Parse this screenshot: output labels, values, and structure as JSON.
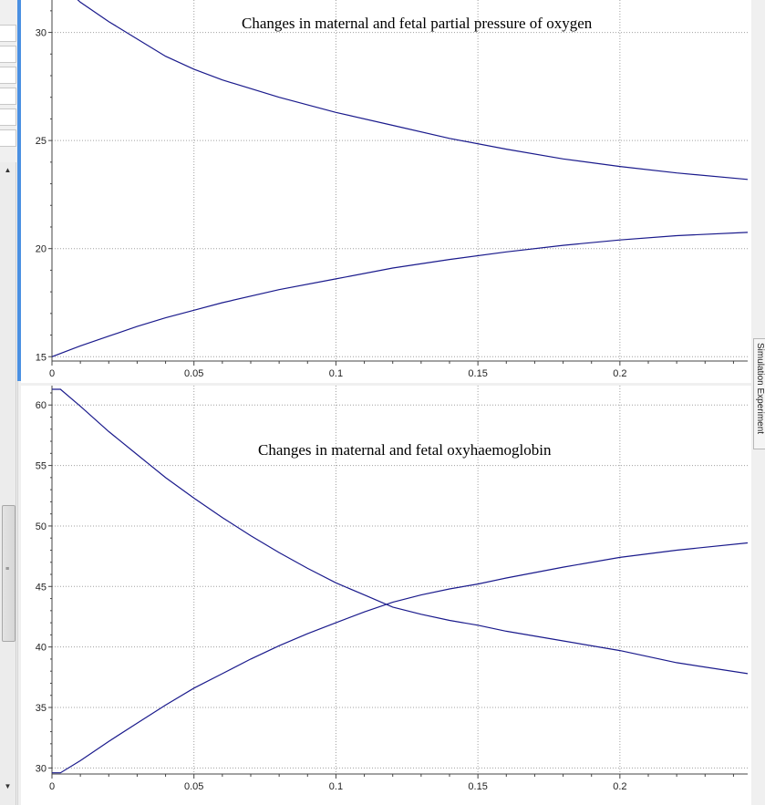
{
  "dock_tab_label": "Simulation Experiment",
  "colors": {
    "series": "#1a1a8c",
    "grid": "#a0a0a0",
    "selection": "#4a90e2"
  },
  "chart_data": [
    {
      "type": "line",
      "title": "Changes in maternal and fetal partial pressure of oxygen",
      "xlim": [
        0,
        0.245
      ],
      "ylim": [
        14.8,
        31.5
      ],
      "x_ticks": [
        0,
        0.05,
        0.1,
        0.15,
        0.2
      ],
      "x_tick_labels": [
        "0",
        "0.05",
        "0.1",
        "0.15",
        "0.2"
      ],
      "y_ticks": [
        15,
        20,
        25,
        30
      ],
      "y_tick_labels": [
        "15",
        "20",
        "25",
        "30"
      ],
      "grid": true,
      "series": [
        {
          "x": [
            0,
            0.01,
            0.02,
            0.03,
            0.04,
            0.05,
            0.06,
            0.08,
            0.1,
            0.12,
            0.14,
            0.16,
            0.18,
            0.2,
            0.22,
            0.245
          ],
          "y": [
            32.6,
            31.4,
            30.5,
            29.7,
            28.9,
            28.3,
            27.8,
            27.0,
            26.3,
            25.7,
            25.1,
            24.6,
            24.15,
            23.8,
            23.5,
            23.2
          ]
        },
        {
          "x": [
            0,
            0.01,
            0.02,
            0.03,
            0.04,
            0.05,
            0.06,
            0.08,
            0.1,
            0.12,
            0.14,
            0.16,
            0.18,
            0.2,
            0.22,
            0.245
          ],
          "y": [
            15.0,
            15.5,
            15.95,
            16.4,
            16.8,
            17.15,
            17.5,
            18.1,
            18.6,
            19.1,
            19.5,
            19.85,
            20.15,
            20.4,
            20.6,
            20.75
          ]
        }
      ]
    },
    {
      "type": "line",
      "title": "Changes in maternal and fetal oxyhaemoglobin",
      "xlim": [
        0,
        0.245
      ],
      "ylim": [
        29.5,
        61.6
      ],
      "x_ticks": [
        0,
        0.05,
        0.1,
        0.15,
        0.2
      ],
      "x_tick_labels": [
        "0",
        "0.05",
        "0.1",
        "0.15",
        "0.2"
      ],
      "y_ticks": [
        30,
        35,
        40,
        45,
        50,
        55,
        60
      ],
      "y_tick_labels": [
        "30",
        "35",
        "40",
        "45",
        "50",
        "55",
        "60"
      ],
      "grid": true,
      "series": [
        {
          "x": [
            0,
            0.003,
            0.01,
            0.02,
            0.03,
            0.04,
            0.05,
            0.06,
            0.07,
            0.08,
            0.09,
            0.1,
            0.11,
            0.12,
            0.13,
            0.14,
            0.15,
            0.16,
            0.18,
            0.2,
            0.22,
            0.245
          ],
          "y": [
            61.3,
            61.3,
            59.9,
            57.8,
            55.9,
            54.0,
            52.3,
            50.7,
            49.2,
            47.8,
            46.5,
            45.3,
            44.3,
            43.3,
            42.7,
            42.2,
            41.8,
            41.3,
            40.5,
            39.7,
            38.7,
            37.8
          ]
        },
        {
          "x": [
            0,
            0.003,
            0.01,
            0.02,
            0.03,
            0.04,
            0.05,
            0.06,
            0.07,
            0.08,
            0.09,
            0.1,
            0.11,
            0.12,
            0.13,
            0.14,
            0.15,
            0.16,
            0.18,
            0.2,
            0.22,
            0.245
          ],
          "y": [
            29.6,
            29.6,
            30.6,
            32.2,
            33.7,
            35.2,
            36.6,
            37.8,
            39.0,
            40.1,
            41.1,
            42.0,
            42.9,
            43.7,
            44.3,
            44.8,
            45.2,
            45.7,
            46.6,
            47.4,
            48.0,
            48.6
          ]
        }
      ]
    }
  ]
}
